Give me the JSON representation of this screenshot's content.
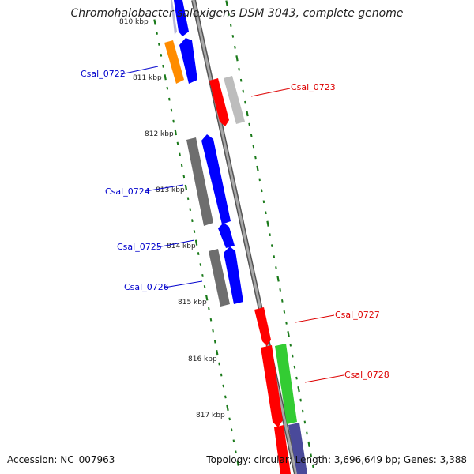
{
  "title": "Chromohalobacter salexigens DSM 3043, complete genome",
  "accession": "Accession: NC_007963",
  "summary": "Topology: circular; Length: 3,696,649 bp; Genes: 3,388",
  "colors": {
    "backbone": "#8c8c8c",
    "ruler_ticks": "#1a7a1a",
    "forward_label": "#0000cc",
    "reverse_label": "#dd0000",
    "blue": "#0000ff",
    "orange": "#ff8c00",
    "gray": "#6e6e6e",
    "lightgray": "#bdbdbd",
    "red": "#ff0000",
    "green": "#33cc33",
    "purple": "#4a4a9a"
  },
  "kbp_labels": [
    "810 kbp",
    "811 kbp",
    "812 kbp",
    "813 kbp",
    "814 kbp",
    "815 kbp",
    "816 kbp",
    "817 kbp"
  ],
  "genes": [
    {
      "id": "Csal_0722",
      "strand": "+"
    },
    {
      "id": "Csal_0723",
      "strand": "-"
    },
    {
      "id": "Csal_0724",
      "strand": "+"
    },
    {
      "id": "Csal_0725",
      "strand": "+"
    },
    {
      "id": "Csal_0726",
      "strand": "+"
    },
    {
      "id": "Csal_0727",
      "strand": "-"
    },
    {
      "id": "Csal_0728",
      "strand": "-"
    }
  ]
}
